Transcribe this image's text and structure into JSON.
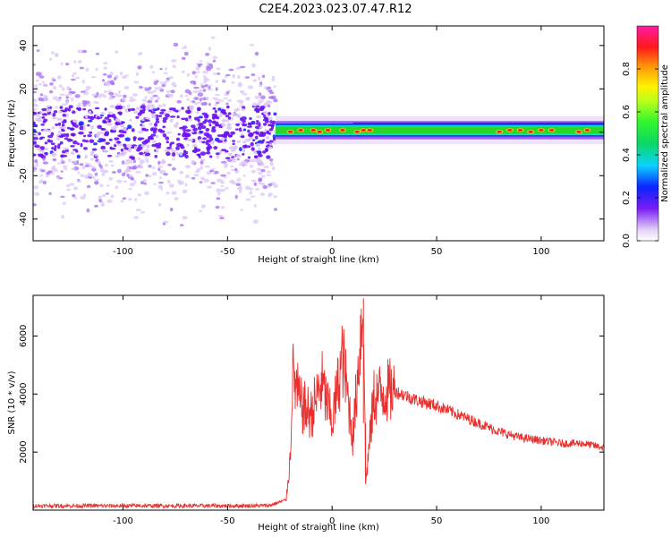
{
  "title": "C2E4.2023.023.07.47.R12",
  "colors": {
    "snr_line": "#e8312f",
    "spectrogram_noise": "#6a12f0",
    "ridge_high": "#e41a1c",
    "ridge_mid": "#2bd62b"
  },
  "chart_data": [
    {
      "type": "heatmap",
      "title": "C2E4.2023.023.07.47.R12",
      "xlabel": "Height of straight line (km)",
      "ylabel": "Frequency (Hz)",
      "xlim": [
        -143,
        130
      ],
      "ylim": [
        -50,
        49
      ],
      "xticks": [
        -100,
        -50,
        0,
        50,
        100
      ],
      "yticks": [
        40,
        20,
        0,
        -20,
        -40
      ],
      "grid": false,
      "colorbar": {
        "label": "Normalized spectral amplitude",
        "range": [
          0.0,
          1.0
        ],
        "ticks": [
          0.0,
          0.2,
          0.4,
          0.6,
          0.8
        ],
        "colormap": "gist_ncar-like"
      },
      "regions": [
        {
          "name": "noise",
          "x_range": [
            -143,
            -27
          ],
          "freq_range": [
            -49,
            49
          ],
          "amplitude": 0.1
        },
        {
          "name": "signal",
          "x_range": [
            -27,
            130
          ],
          "freq_center": 1,
          "freq_halfwidth": 4,
          "amplitude_range": [
            0.4,
            1.0
          ]
        }
      ]
    },
    {
      "type": "line",
      "title": "",
      "xlabel": "Height of straight line (km)",
      "ylabel": "SNR (10 * v/v)",
      "xlim": [
        -143,
        130
      ],
      "ylim": [
        0,
        7400
      ],
      "xticks": [
        -100,
        -50,
        0,
        50,
        100
      ],
      "yticks": [
        2000,
        4000,
        6000
      ],
      "grid": false,
      "series": [
        {
          "x": [
            -143,
            -120,
            -100,
            -80,
            -60,
            -40,
            -30,
            -22,
            -20,
            -19,
            -15,
            -10,
            -5,
            0,
            5,
            10,
            15,
            16,
            20,
            25,
            30,
            40,
            50,
            60,
            70,
            80,
            90,
            100,
            110,
            120,
            130
          ],
          "values": [
            150,
            150,
            150,
            150,
            150,
            150,
            160,
            350,
            1800,
            4700,
            3600,
            3300,
            4400,
            3000,
            5300,
            2500,
            7300,
            900,
            3900,
            4100,
            4100,
            3800,
            3600,
            3300,
            3000,
            2700,
            2500,
            2400,
            2300,
            2300,
            2150
          ]
        }
      ]
    }
  ]
}
